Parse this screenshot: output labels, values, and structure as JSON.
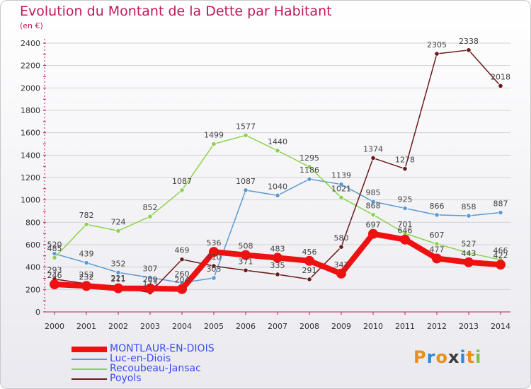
{
  "title": "Evolution du Montant de la Dette par Habitant",
  "unit": "(en €)",
  "logo_text": "Proxiti",
  "logo_colors": [
    "#e8901a",
    "#2a8bd8",
    "#e8901a",
    "#3a3a3a",
    "#2a8bd8",
    "#e8901a",
    "#7cc242"
  ],
  "chart_data": {
    "type": "line",
    "x": [
      "2000",
      "2001",
      "2002",
      "2003",
      "2004",
      "2005",
      "2006",
      "2007",
      "2008",
      "2009",
      "2010",
      "2011",
      "2012",
      "2013",
      "2014"
    ],
    "ylim": [
      0,
      2400
    ],
    "yticks": [
      0,
      200,
      400,
      600,
      800,
      1000,
      1200,
      1400,
      1600,
      1800,
      2000,
      2200,
      2400
    ],
    "grid": true,
    "legend_position": "bottom",
    "series": [
      {
        "name": "MONTLAUR-EN-DIOIS",
        "color": "#ee1111",
        "values": [
          246,
          232,
          211,
          209,
          204,
          536,
          508,
          483,
          456,
          342,
          697,
          646,
          477,
          443,
          422
        ],
        "labels": [
          "246",
          "232",
          "211",
          "209",
          "204",
          "536",
          "508",
          "483",
          "456",
          "342",
          "697",
          "646",
          "477",
          "443",
          "422"
        ]
      },
      {
        "name": "Luc-en-Diois",
        "color": "#5b9bd5",
        "values": [
          520,
          439,
          352,
          307,
          260,
          303,
          1087,
          1040,
          1186,
          1139,
          985,
          925,
          866,
          858,
          887
        ],
        "labels": [
          "520",
          "439",
          "352",
          "307",
          "260",
          "303",
          "1087",
          "1040",
          "1186",
          "1139",
          "985",
          "925",
          "866",
          "858",
          "887"
        ]
      },
      {
        "name": "Recoubeau-Jansac",
        "color": "#8ed14c",
        "values": [
          485,
          782,
          724,
          852,
          1087,
          1499,
          1577,
          1440,
          1295,
          1021,
          868,
          701,
          607,
          527,
          466
        ],
        "labels": [
          "485",
          "782",
          "724",
          "852",
          "1087",
          "1499",
          "1577",
          "1440",
          "1295",
          "1021",
          "868",
          "701",
          "607",
          "527",
          "466"
        ]
      },
      {
        "name": "Poyols",
        "color": "#6b1a1a",
        "values": [
          293,
          252,
          221,
          173,
          469,
          410,
          371,
          335,
          291,
          580,
          1374,
          1278,
          2305,
          2338,
          2018
        ],
        "labels": [
          "293",
          "252",
          "221",
          "173",
          "469",
          "410",
          "371",
          "335",
          "291",
          "580",
          "1374",
          "1278",
          "2305",
          "2338",
          "2018"
        ]
      }
    ]
  }
}
